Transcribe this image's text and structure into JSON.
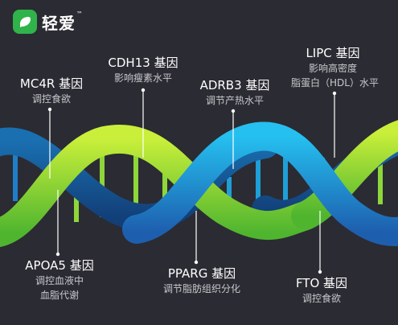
{
  "brand": {
    "name": "轻爱",
    "tm": "™",
    "accent": "#2fb34a"
  },
  "colors": {
    "background": "#2b2b33",
    "helix_green": "#8ed63a",
    "helix_blue": "#1f9fd8"
  },
  "genes": [
    {
      "id": "mc4r",
      "name": "MC4R 基因",
      "desc": [
        "调控食欲"
      ]
    },
    {
      "id": "cdh13",
      "name": "CDH13 基因",
      "desc": [
        "影响瘦素水平"
      ]
    },
    {
      "id": "adrb3",
      "name": "ADRB3 基因",
      "desc": [
        "调节产热水平"
      ]
    },
    {
      "id": "lipc",
      "name": "LIPC 基因",
      "desc": [
        "影响高密度",
        "脂蛋白（HDL）水平"
      ]
    },
    {
      "id": "apoa5",
      "name": "APOA5 基因",
      "desc": [
        "调控血液中",
        "血脂代谢"
      ]
    },
    {
      "id": "pparg",
      "name": "PPARG 基因",
      "desc": [
        "调节脂肪组织分化"
      ]
    },
    {
      "id": "fto",
      "name": "FTO 基因",
      "desc": [
        "调控食欲"
      ]
    }
  ]
}
